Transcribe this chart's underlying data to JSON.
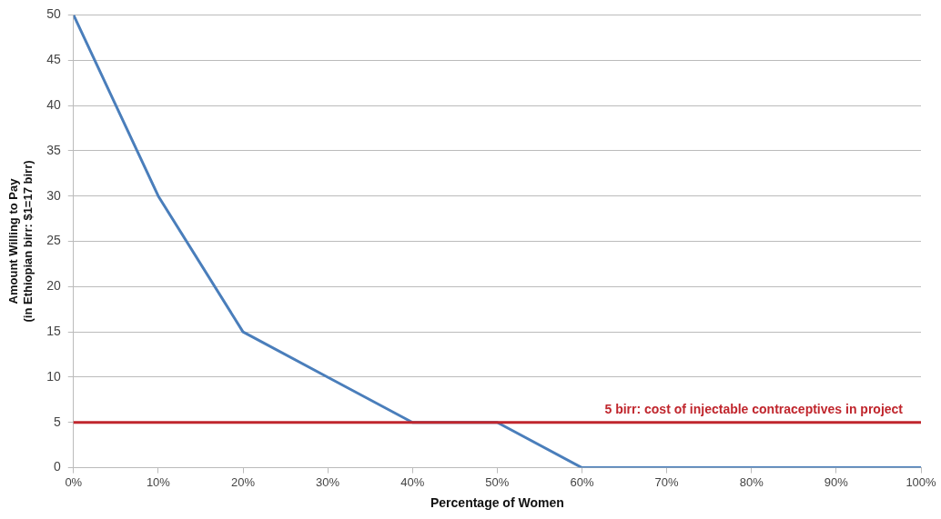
{
  "chart_data": {
    "type": "line",
    "xlabel": "Percentage of Women",
    "ylabel": "Amount Willing to Pay\n(in Ethiopian birr: $1=17 birr)",
    "x": [
      0,
      10,
      20,
      30,
      40,
      50,
      60,
      70,
      80,
      90,
      100
    ],
    "series": [
      {
        "color": "#4a7ebb",
        "values": [
          50,
          30,
          15,
          10,
          5,
          5,
          0,
          0,
          0,
          0,
          0
        ]
      }
    ],
    "xlim": [
      0,
      100
    ],
    "xticks": [
      {
        "value": 0,
        "label": "0%"
      },
      {
        "value": 10,
        "label": "10%"
      },
      {
        "value": 20,
        "label": "20%"
      },
      {
        "value": 30,
        "label": "30%"
      },
      {
        "value": 40,
        "label": "40%"
      },
      {
        "value": 50,
        "label": "50%"
      },
      {
        "value": 60,
        "label": "60%"
      },
      {
        "value": 70,
        "label": "70%"
      },
      {
        "value": 80,
        "label": "80%"
      },
      {
        "value": 90,
        "label": "90%"
      },
      {
        "value": 100,
        "label": "100%"
      }
    ],
    "ylim": [
      0,
      50
    ],
    "yticks": [
      0,
      5,
      10,
      15,
      20,
      25,
      30,
      35,
      40,
      45,
      50
    ],
    "grid": "y",
    "marker": "none",
    "line_style": "solid",
    "ref_lines": [
      {
        "axis": "y",
        "value": 5,
        "label": "5 birr: cost of injectable contraceptives in project",
        "color": "#c0262d"
      }
    ]
  }
}
